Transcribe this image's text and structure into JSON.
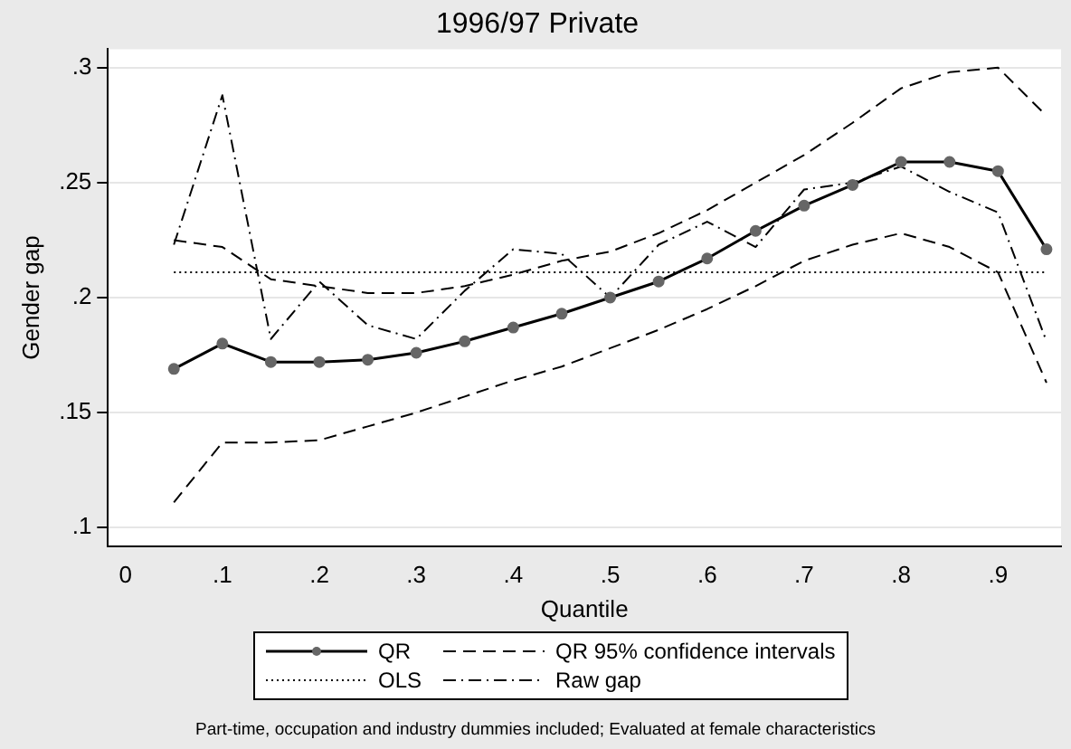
{
  "chart_data": {
    "type": "line",
    "title": "1996/97 Private",
    "xlabel": "Quantile",
    "ylabel": "Gender gap",
    "x": [
      0.05,
      0.1,
      0.15,
      0.2,
      0.25,
      0.3,
      0.35,
      0.4,
      0.45,
      0.5,
      0.55,
      0.6,
      0.65,
      0.7,
      0.75,
      0.8,
      0.85,
      0.9,
      0.95
    ],
    "series": [
      {
        "name": "QR",
        "color": "#000000",
        "marker": "circle",
        "line_style": "solid",
        "values": [
          0.169,
          0.18,
          0.172,
          0.172,
          0.173,
          0.176,
          0.181,
          0.187,
          0.193,
          0.2,
          0.207,
          0.217,
          0.229,
          0.24,
          0.249,
          0.259,
          0.259,
          0.255,
          0.221
        ]
      },
      {
        "name": "QR 95% confidence intervals",
        "color": "#000000",
        "marker": "none",
        "line_style": "dashed",
        "values": [
          0.225,
          0.222,
          0.208,
          0.205,
          0.202,
          0.202,
          0.205,
          0.21,
          0.216,
          0.22,
          0.228,
          0.238,
          0.25,
          0.262,
          0.276,
          0.291,
          0.298,
          0.3,
          0.279
        ]
      },
      {
        "name": "OLS",
        "color": "#000000",
        "marker": "none",
        "line_style": "dotted",
        "values": [
          0.211,
          0.211,
          0.211,
          0.211,
          0.211,
          0.211,
          0.211,
          0.211,
          0.211,
          0.211,
          0.211,
          0.211,
          0.211,
          0.211,
          0.211,
          0.211,
          0.211,
          0.211,
          0.211
        ]
      },
      {
        "name": "Raw gap",
        "color": "#000000",
        "marker": "none",
        "line_style": "dashdot",
        "values": [
          0.223,
          0.288,
          0.182,
          0.207,
          0.188,
          0.182,
          0.203,
          0.221,
          0.219,
          0.2,
          0.223,
          0.233,
          0.222,
          0.247,
          0.25,
          0.257,
          0.246,
          0.237,
          0.181
        ]
      },
      {
        "color": "#000000",
        "marker": "none",
        "line_style": "dashed",
        "values": [
          0.111,
          0.137,
          0.137,
          0.138,
          0.144,
          0.15,
          0.157,
          0.164,
          0.17,
          0.178,
          0.186,
          0.195,
          0.205,
          0.216,
          0.223,
          0.228,
          0.222,
          0.211,
          0.163
        ]
      }
    ],
    "xlim": [
      -0.018,
      0.965
    ],
    "ylim": [
      0.092,
      0.308
    ],
    "xticks": [
      0,
      {
        "value": 0.1,
        "label": ".1"
      },
      {
        "value": 0.2,
        "label": ".2"
      },
      {
        "value": 0.3,
        "label": ".3"
      },
      {
        "value": 0.4,
        "label": ".4"
      },
      {
        "value": 0.5,
        "label": ".5"
      },
      {
        "value": 0.6,
        "label": ".6"
      },
      {
        "value": 0.7,
        "label": ".7"
      },
      {
        "value": 0.8,
        "label": ".8"
      },
      {
        "value": 0.9,
        "label": ".9"
      }
    ],
    "yticks": [
      {
        "value": 0.1,
        "label": ".1"
      },
      {
        "value": 0.15,
        "label": ".15"
      },
      {
        "value": 0.2,
        "label": ".2"
      },
      {
        "value": 0.25,
        "label": ".25"
      },
      {
        "value": 0.3,
        "label": ".3"
      }
    ],
    "grid": "y",
    "legend": "bottom",
    "annotations": [
      "Part-time, occupation and industry dummies included; Evaluated at female characteristics"
    ]
  }
}
